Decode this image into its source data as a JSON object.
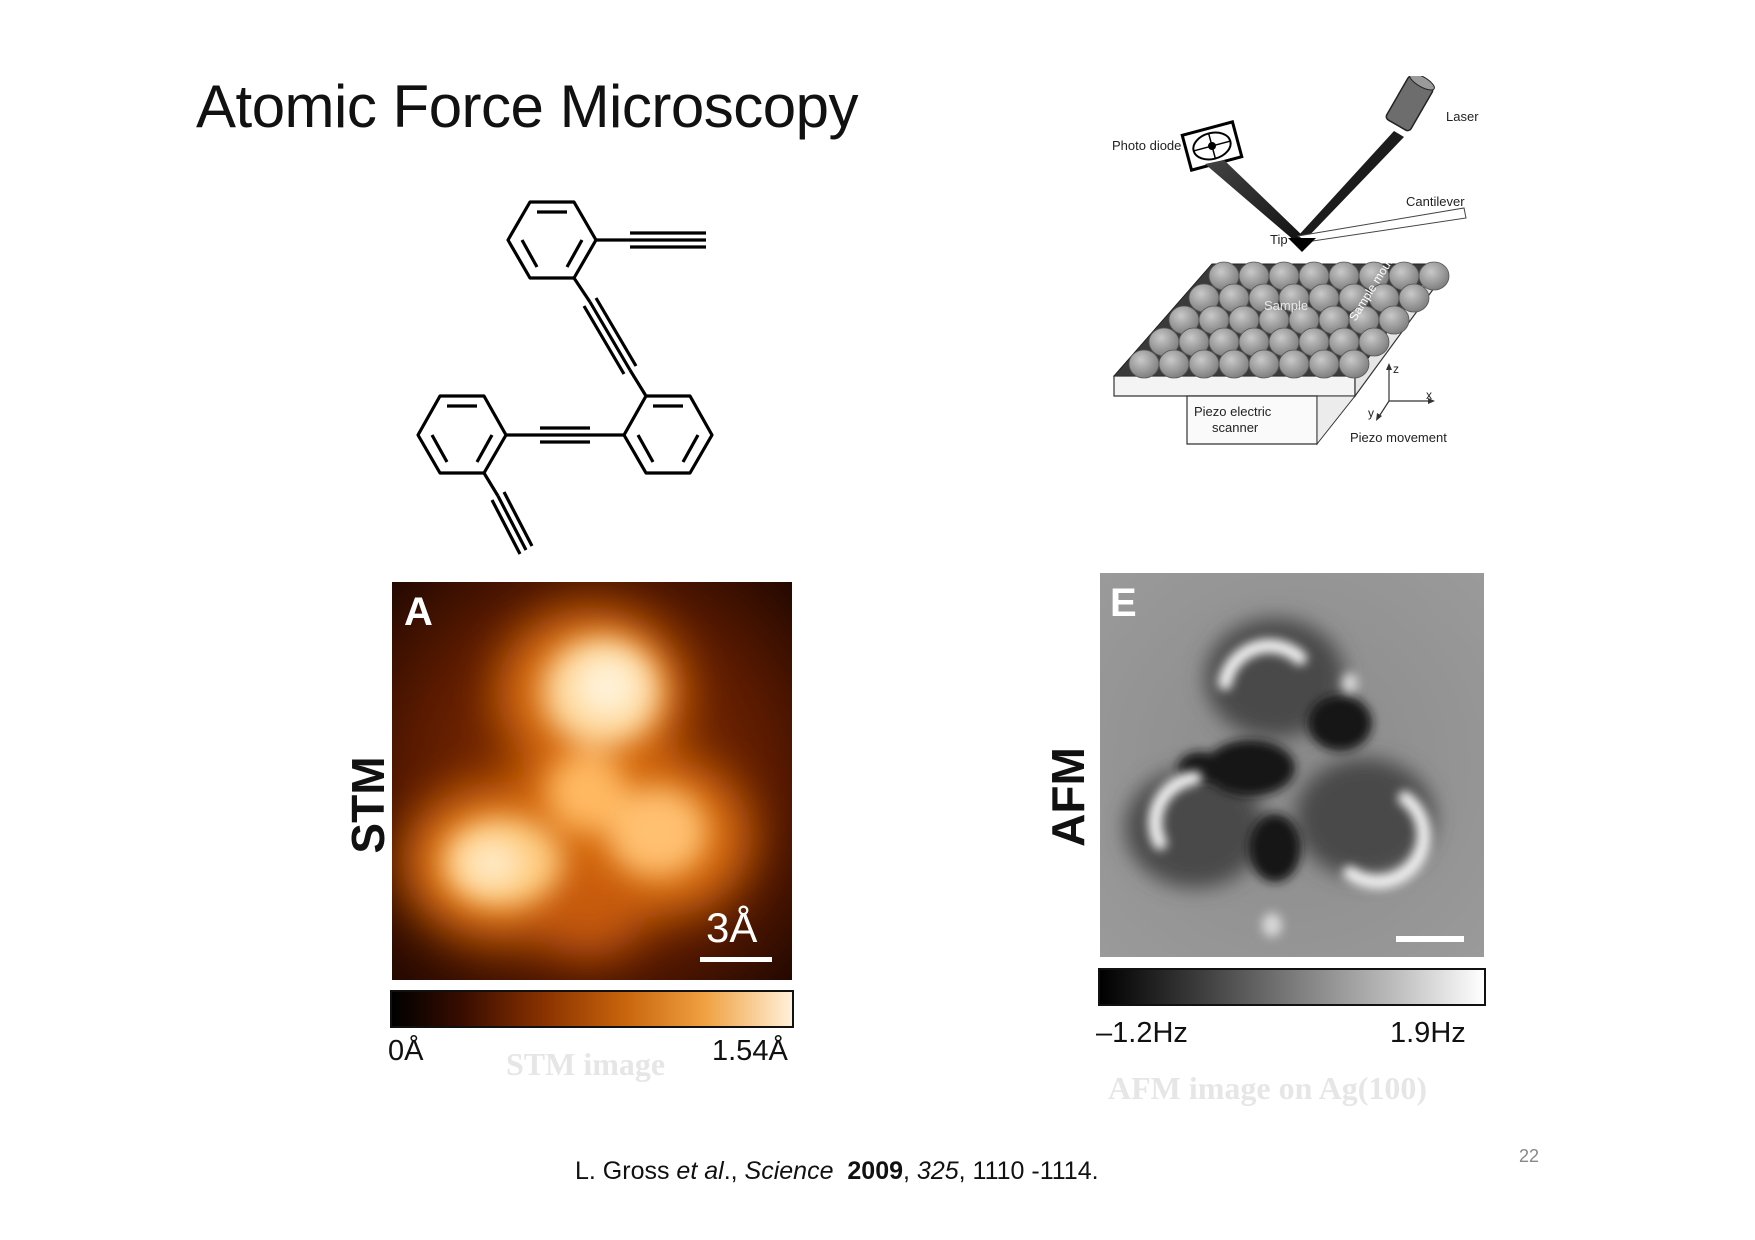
{
  "slide": {
    "title": "Atomic Force Microscopy",
    "page_number": "22"
  },
  "setup_diagram": {
    "labels": {
      "photo_diode": "Photo diode",
      "laser": "Laser",
      "cantilever": "Cantilever",
      "tip": "Tip",
      "sample": "Sample",
      "sample_mount": "Sample mount",
      "piezo_scanner_line1": "Piezo electric",
      "piezo_scanner_line2": "scanner",
      "axis_x": "x",
      "axis_y": "y",
      "axis_z": "z",
      "piezo_movement": "Piezo movement"
    }
  },
  "stm_panel": {
    "side_label": "STM",
    "panel_letter": "A",
    "scale_bar_label": "3Å",
    "colorbar_min": "0Å",
    "colorbar_max": "1.54Å",
    "caption": "STM image",
    "colors": {
      "dark": "#1a0600",
      "mid": "#b84a00",
      "bright": "#ffe8c0"
    }
  },
  "afm_panel": {
    "side_label": "AFM",
    "panel_letter": "E",
    "colorbar_min": "–1.2Hz",
    "colorbar_max": "1.9Hz",
    "caption": "AFM image on Ag(100)"
  },
  "citation": {
    "authors": "L.  Gross ",
    "etal": "et al",
    "sep1": "., ",
    "journal": "Science",
    "year": "2009",
    "sep2": ", ",
    "volume": "325",
    "pages": ", 1110 -1114."
  }
}
